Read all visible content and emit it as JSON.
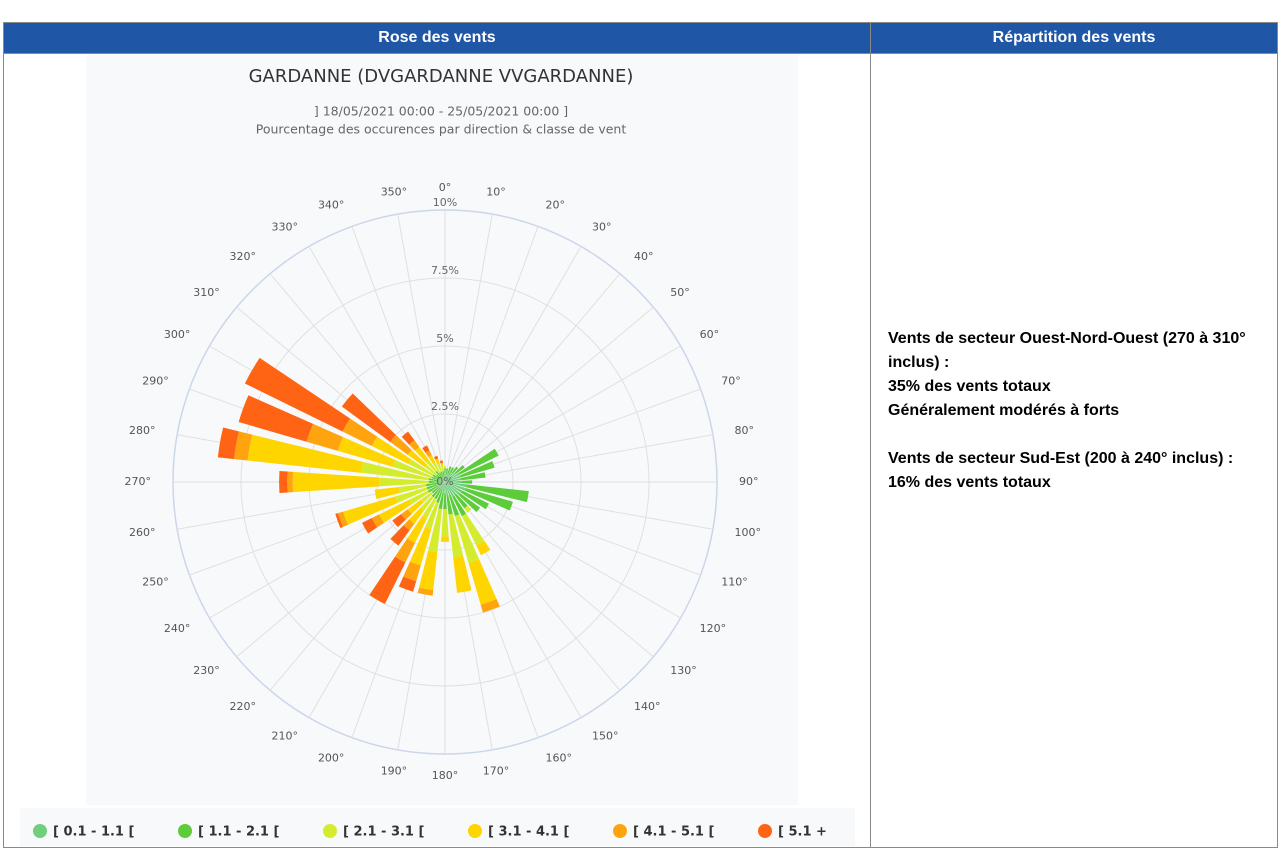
{
  "table": {
    "headers": [
      "Rose des vents",
      "Répartition des vents"
    ],
    "notes": [
      [
        "Vents de secteur Ouest-Nord-Ouest (270 à 310° inclus) :",
        "35% des vents totaux",
        "Généralement modérés à forts"
      ],
      [
        "Vents de secteur Sud-Est (200 à 240° inclus) :",
        "16% des vents totaux"
      ]
    ]
  },
  "chart_data": {
    "type": "windrose",
    "title": "GARDANNE (DVGARDANNE VVGARDANNE)",
    "subtitle": "] 18/05/2021 00:00 - 25/05/2021 00:00 ]",
    "subtitle2": "Pourcentage des occurences par direction & classe de vent",
    "categories": [
      "0°",
      "10°",
      "20°",
      "30°",
      "40°",
      "50°",
      "60°",
      "70°",
      "80°",
      "90°",
      "100°",
      "110°",
      "120°",
      "130°",
      "140°",
      "150°",
      "160°",
      "170°",
      "180°",
      "190°",
      "200°",
      "210°",
      "220°",
      "230°",
      "240°",
      "250°",
      "260°",
      "270°",
      "280°",
      "290°",
      "300°",
      "310°",
      "320°",
      "330°",
      "340°",
      "350°"
    ],
    "ylim": [
      0,
      10
    ],
    "yticks": [
      {
        "value": 0,
        "label": "0%"
      },
      {
        "value": 2.5,
        "label": "2.5%"
      },
      {
        "value": 5,
        "label": "5%"
      },
      {
        "value": 7.5,
        "label": "7.5%"
      },
      {
        "value": 10,
        "label": "10%"
      }
    ],
    "grid": true,
    "series": [
      {
        "name": "[ 0.1 - 1.1 [",
        "color": "#6fcf7a",
        "values": [
          0.3,
          0.3,
          0.3,
          0.3,
          0.4,
          0.5,
          0.6,
          0.6,
          0.6,
          0.6,
          0.8,
          0.8,
          0.7,
          0.7,
          0.6,
          0.6,
          0.5,
          0.5,
          0.4,
          0.4,
          0.3,
          0.3,
          0.3,
          0.3,
          0.3,
          0.3,
          0.3,
          0.2,
          0.2,
          0.2,
          0.2,
          0.2,
          0.2,
          0.2,
          0.2,
          0.2
        ]
      },
      {
        "name": "[ 1.1 - 2.1 [",
        "color": "#5ccc3a",
        "values": [
          0.2,
          0.2,
          0.3,
          0.3,
          0.3,
          0.4,
          1.6,
          1.3,
          0.9,
          0.4,
          2.3,
          1.8,
          1.1,
          0.9,
          0.6,
          0.8,
          0.8,
          0.7,
          0.6,
          0.6,
          0.5,
          0.4,
          0.4,
          0.3,
          0.4,
          0.4,
          0.4,
          0.4,
          0.4,
          0.3,
          0.3,
          0.2,
          0.3,
          0.2,
          0.2,
          0.2
        ]
      },
      {
        "name": "[ 2.1 - 3.1 [",
        "color": "#d5ec2e",
        "values": [
          0.1,
          0,
          0,
          0,
          0,
          0,
          0,
          0,
          0,
          0,
          0,
          0,
          0,
          0,
          0.2,
          1.2,
          1.8,
          1.6,
          1.0,
          1.6,
          1.0,
          0.8,
          0.6,
          0.5,
          0.8,
          1.2,
          1.0,
          1.8,
          2.5,
          1.5,
          1.0,
          0.5,
          0.5,
          0.4,
          0.3,
          0.2
        ]
      },
      {
        "name": "[ 3.1 - 4.1 [",
        "color": "#ffd500",
        "values": [
          0,
          0,
          0,
          0,
          0,
          0,
          0,
          0,
          0,
          0,
          0,
          0,
          0,
          0,
          0,
          0.4,
          1.6,
          1.3,
          0.2,
          1.4,
          1.4,
          1.0,
          0.6,
          0.6,
          1.2,
          2.0,
          0.9,
          3.2,
          4.2,
          2.1,
          1.5,
          0.8,
          0.6,
          0.3,
          0.2,
          0.1
        ]
      },
      {
        "name": "[ 4.1 - 5.1 [",
        "color": "#ffa40f",
        "values": [
          0,
          0,
          0,
          0,
          0,
          0,
          0,
          0,
          0,
          0,
          0,
          0,
          0,
          0,
          0,
          0,
          0.3,
          0,
          0,
          0.2,
          0.6,
          0.8,
          0.3,
          0.3,
          0.3,
          0.2,
          0,
          0.2,
          0.5,
          1.2,
          1.2,
          0.8,
          0.3,
          0.2,
          0,
          0
        ]
      },
      {
        "name": "[ 5.1 +",
        "color": "#ff6414",
        "values": [
          0,
          0,
          0,
          0,
          0,
          0,
          0,
          0,
          0,
          0,
          0,
          0,
          0,
          0,
          0,
          0,
          0,
          0,
          0,
          0,
          0.4,
          1.7,
          0.7,
          0.4,
          0.4,
          0.1,
          0,
          0.3,
          0.6,
          2.6,
          4.0,
          2.2,
          0.4,
          0.2,
          0.1,
          0.1
        ]
      }
    ]
  }
}
